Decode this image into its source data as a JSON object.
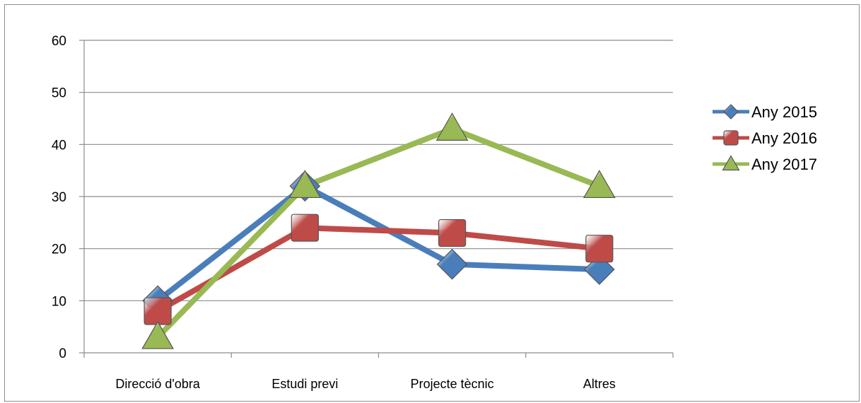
{
  "chart_data": {
    "type": "line",
    "categories": [
      "Direcció d'obra",
      "Estudi previ",
      "Projecte tècnic",
      "Altres"
    ],
    "ylim": [
      0,
      60
    ],
    "yticks": [
      0,
      10,
      20,
      30,
      40,
      50,
      60
    ],
    "grid": true,
    "legend_position": "right",
    "series": [
      {
        "name": "Any 2015",
        "values": [
          10,
          32,
          17,
          16
        ],
        "color": "#4a7ebb",
        "marker": "diamond"
      },
      {
        "name": "Any 2016",
        "values": [
          8,
          24,
          23,
          20
        ],
        "color": "#be4b48",
        "marker": "square"
      },
      {
        "name": "Any 2017",
        "values": [
          3,
          32,
          43,
          32
        ],
        "color": "#98b954",
        "marker": "triangle"
      }
    ]
  }
}
